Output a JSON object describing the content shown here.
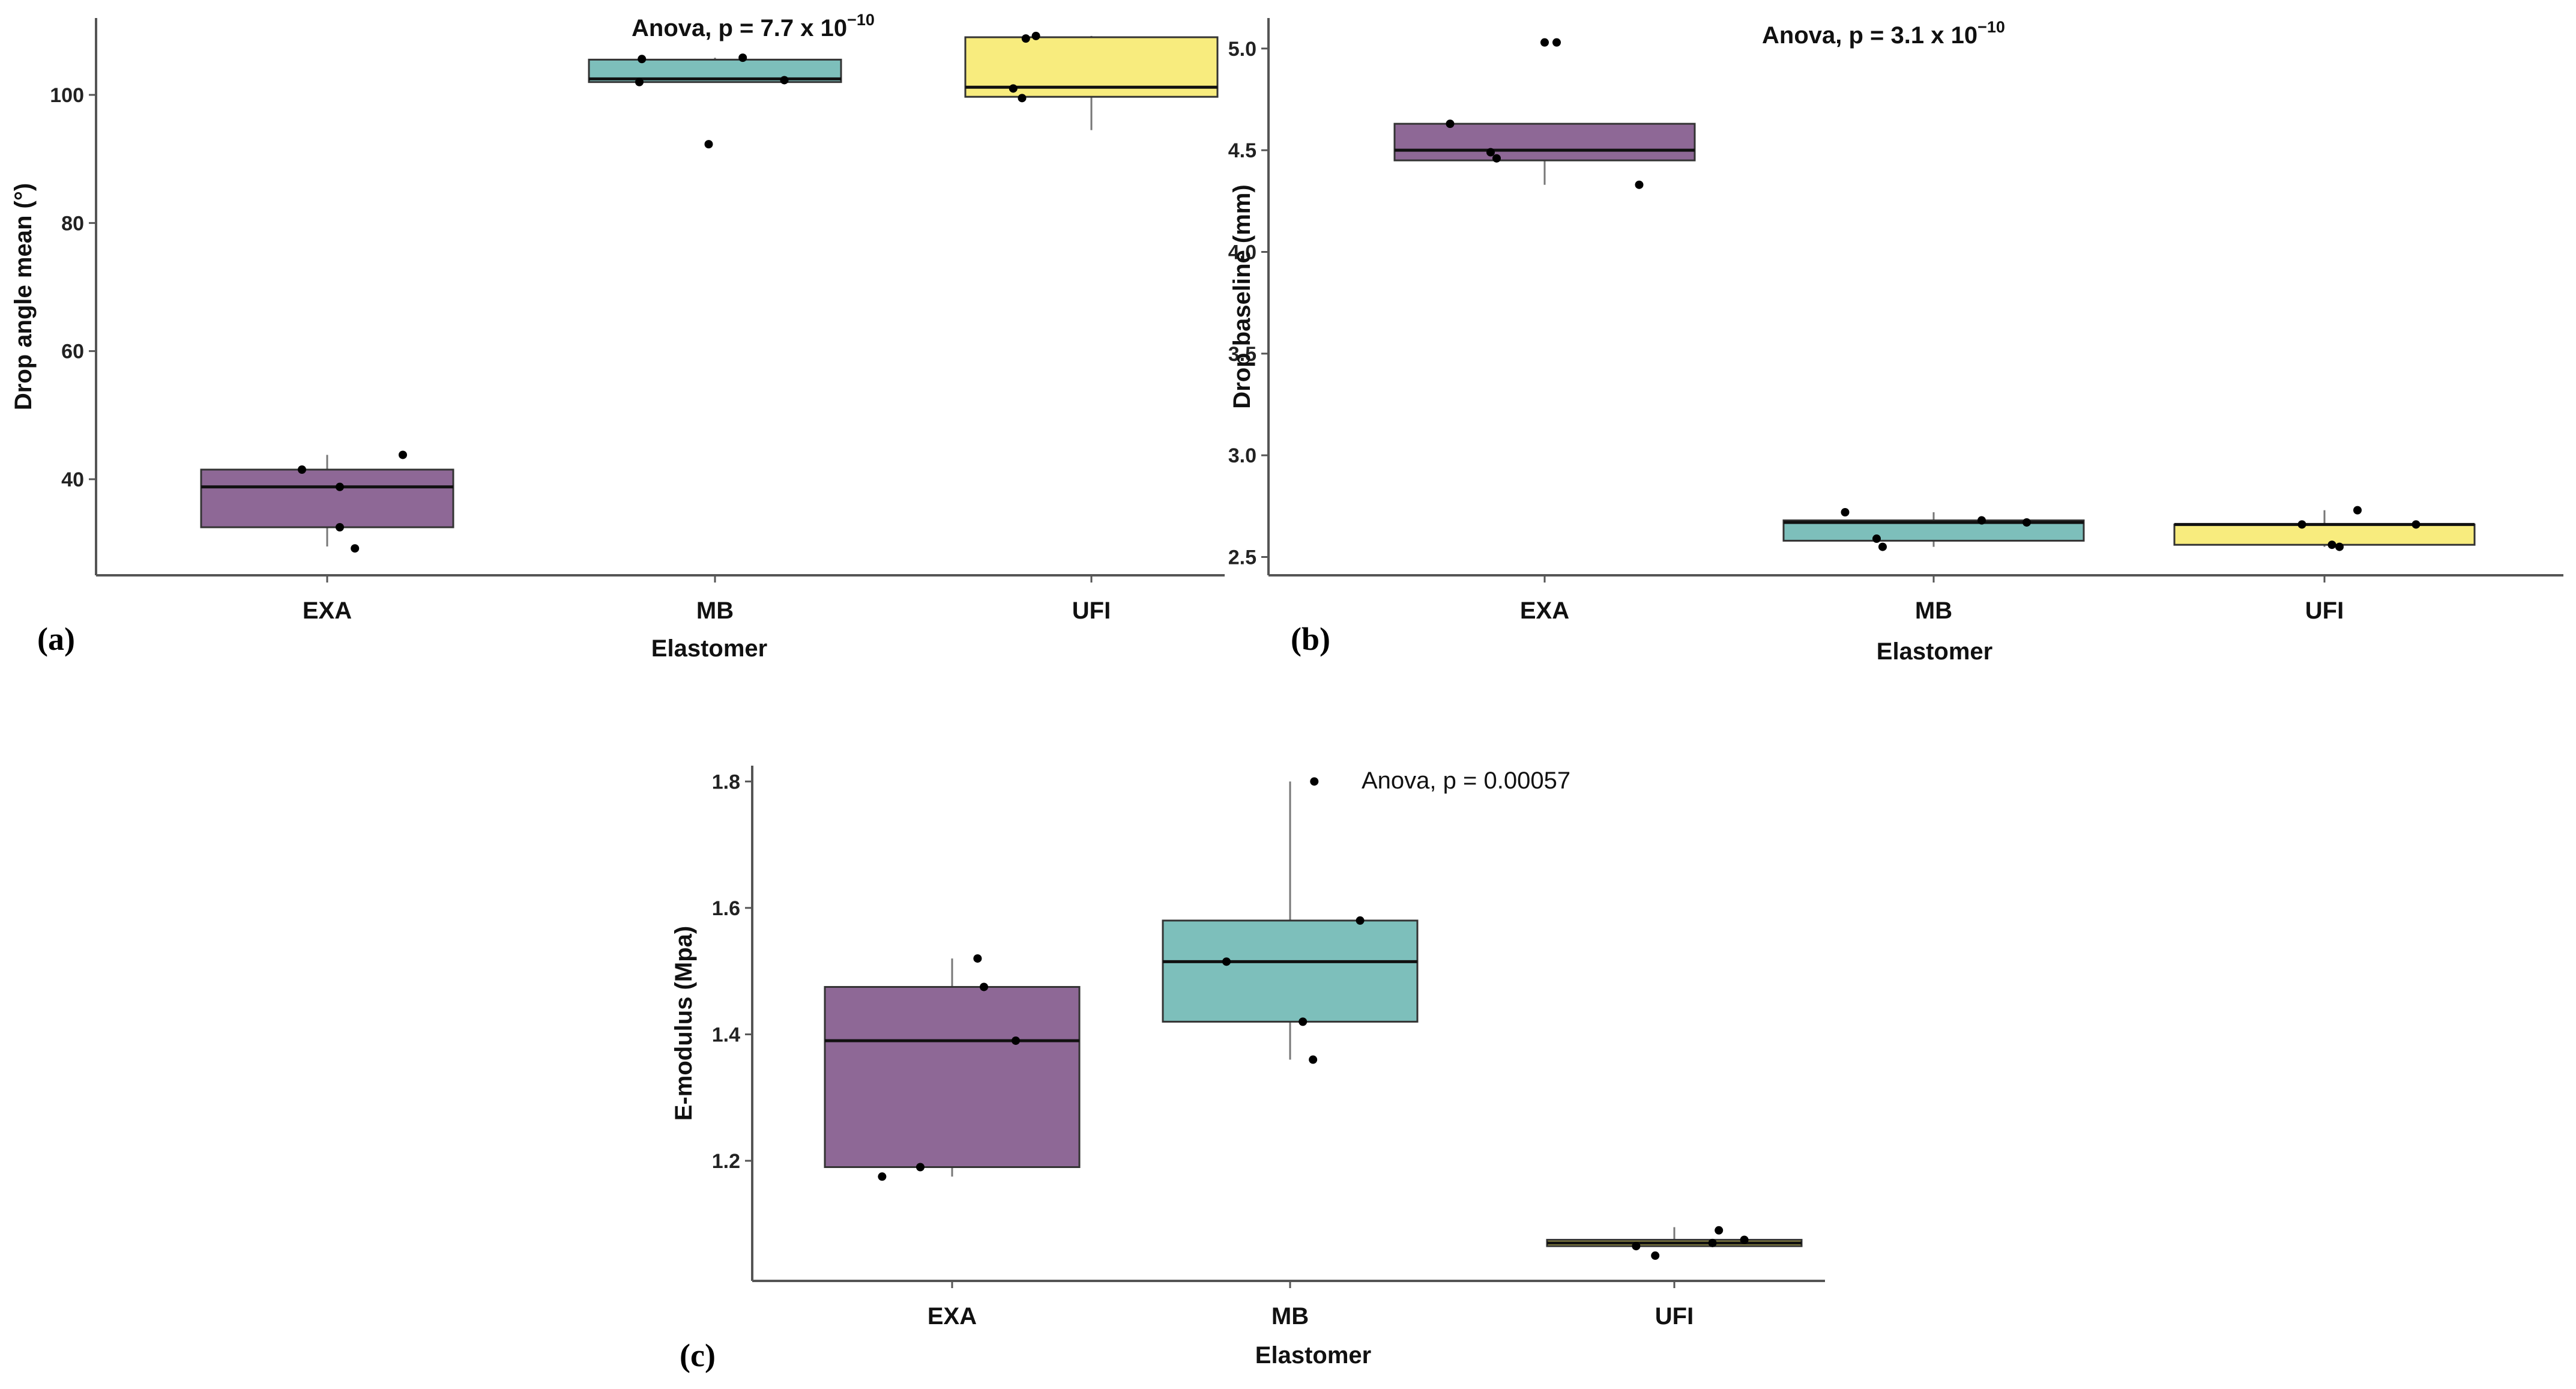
{
  "figure": {
    "panel_labels": [
      "(a)",
      "(b)",
      "(c)"
    ]
  },
  "colors": {
    "EXA": "#8e6896",
    "MB": "#7dbfbb",
    "UFI": "#f8ec7e",
    "UFI_c": "#b5ad52"
  },
  "chart_data": [
    {
      "type": "box",
      "panel": "(a)",
      "title": "",
      "annotation": {
        "prefix": "Anova, p = 7.7 x 10",
        "exponent": "−10"
      },
      "xlabel": "Elastomer",
      "ylabel": "Drop angle mean (°)",
      "categories": [
        "EXA",
        "MB",
        "UFI"
      ],
      "ylim": [
        25,
        112
      ],
      "yticks": [
        40,
        60,
        80,
        100
      ],
      "ytick_labels": [
        "40",
        "60",
        "80",
        "100"
      ],
      "boxes": [
        {
          "category": "EXA",
          "whisker_low": 29.5,
          "q1": 32.5,
          "median": 38.8,
          "q3": 41.5,
          "whisker_high": 43.8
        },
        {
          "category": "MB",
          "whisker_low": 102.0,
          "q1": 102.0,
          "median": 102.5,
          "q3": 105.5,
          "whisker_high": 105.8
        },
        {
          "category": "UFI",
          "whisker_low": 94.5,
          "q1": 99.7,
          "median": 101.2,
          "q3": 109.0,
          "whisker_high": 109.2
        }
      ],
      "points": [
        {
          "category": "EXA",
          "offset": -0.2,
          "value": 41.5
        },
        {
          "category": "EXA",
          "offset": 0.1,
          "value": 38.8
        },
        {
          "category": "EXA",
          "offset": 0.1,
          "value": 32.5
        },
        {
          "category": "EXA",
          "offset": 0.22,
          "value": 29.2
        },
        {
          "category": "EXA",
          "offset": 0.6,
          "value": 43.8
        },
        {
          "category": "MB",
          "offset": -0.6,
          "value": 102.0
        },
        {
          "category": "MB",
          "offset": -0.58,
          "value": 105.6
        },
        {
          "category": "MB",
          "offset": -0.05,
          "value": 92.3
        },
        {
          "category": "MB",
          "offset": 0.22,
          "value": 105.8
        },
        {
          "category": "MB",
          "offset": 0.55,
          "value": 102.3
        },
        {
          "category": "UFI",
          "offset": -0.62,
          "value": 101.0
        },
        {
          "category": "UFI",
          "offset": -0.55,
          "value": 99.5
        },
        {
          "category": "UFI",
          "offset": -0.52,
          "value": 108.8
        },
        {
          "category": "UFI",
          "offset": -0.44,
          "value": 109.2
        }
      ]
    },
    {
      "type": "box",
      "panel": "(b)",
      "title": "",
      "annotation": {
        "prefix": "Anova, p = 3.1 x 10",
        "exponent": "−10"
      },
      "xlabel": "Elastomer",
      "ylabel": "Drop baseline (mm)",
      "categories": [
        "EXA",
        "MB",
        "UFI"
      ],
      "ylim": [
        2.41,
        5.15
      ],
      "yticks": [
        2.5,
        3.0,
        3.5,
        4.0,
        4.5,
        5.0
      ],
      "ytick_labels": [
        "2.5",
        "3.0",
        "3.5",
        "4.0",
        "4.5",
        "5.0"
      ],
      "boxes": [
        {
          "category": "EXA",
          "whisker_low": 4.33,
          "q1": 4.45,
          "median": 4.5,
          "q3": 4.63,
          "whisker_high": 4.63
        },
        {
          "category": "MB",
          "whisker_low": 2.55,
          "q1": 2.58,
          "median": 2.67,
          "q3": 2.68,
          "whisker_high": 2.72
        },
        {
          "category": "UFI",
          "whisker_low": 2.55,
          "q1": 2.56,
          "median": 2.66,
          "q3": 2.66,
          "whisker_high": 2.73
        }
      ],
      "points": [
        {
          "category": "EXA",
          "offset": -0.63,
          "value": 4.63
        },
        {
          "category": "EXA",
          "offset": -0.36,
          "value": 4.49
        },
        {
          "category": "EXA",
          "offset": -0.32,
          "value": 4.46
        },
        {
          "category": "EXA",
          "offset": 0.0,
          "value": 5.03
        },
        {
          "category": "EXA",
          "offset": 0.08,
          "value": 5.03
        },
        {
          "category": "EXA",
          "offset": 0.63,
          "value": 4.33
        },
        {
          "category": "MB",
          "offset": -0.59,
          "value": 2.72
        },
        {
          "category": "MB",
          "offset": -0.38,
          "value": 2.59
        },
        {
          "category": "MB",
          "offset": -0.34,
          "value": 2.55
        },
        {
          "category": "MB",
          "offset": 0.32,
          "value": 2.68
        },
        {
          "category": "MB",
          "offset": 0.62,
          "value": 2.67
        },
        {
          "category": "UFI",
          "offset": -0.15,
          "value": 2.66
        },
        {
          "category": "UFI",
          "offset": 0.05,
          "value": 2.56
        },
        {
          "category": "UFI",
          "offset": 0.1,
          "value": 2.55
        },
        {
          "category": "UFI",
          "offset": 0.22,
          "value": 2.73
        },
        {
          "category": "UFI",
          "offset": 0.61,
          "value": 2.66
        }
      ]
    },
    {
      "type": "box",
      "panel": "(c)",
      "title": "",
      "annotation": {
        "prefix": "Anova, p = 0.00057",
        "exponent": ""
      },
      "xlabel": "Elastomer",
      "ylabel": "E-modulus (Mpa)",
      "categories": [
        "EXA",
        "MB",
        "UFI"
      ],
      "ylim": [
        1.01,
        1.825
      ],
      "yticks": [
        1.2,
        1.4,
        1.6,
        1.8
      ],
      "ytick_labels": [
        "1.2",
        "1.4",
        "1.6",
        "1.8"
      ],
      "boxes": [
        {
          "category": "EXA",
          "whisker_low": 1.175,
          "q1": 1.19,
          "median": 1.39,
          "q3": 1.475,
          "whisker_high": 1.52
        },
        {
          "category": "MB",
          "whisker_low": 1.36,
          "q1": 1.42,
          "median": 1.515,
          "q3": 1.58,
          "whisker_high": 1.8
        },
        {
          "category": "UFI",
          "whisker_low": 1.065,
          "q1": 1.065,
          "median": 1.07,
          "q3": 1.075,
          "whisker_high": 1.095
        }
      ],
      "points": [
        {
          "category": "EXA",
          "offset": -0.55,
          "value": 1.175
        },
        {
          "category": "EXA",
          "offset": -0.25,
          "value": 1.19
        },
        {
          "category": "EXA",
          "offset": 0.2,
          "value": 1.52
        },
        {
          "category": "EXA",
          "offset": 0.25,
          "value": 1.475
        },
        {
          "category": "EXA",
          "offset": 0.5,
          "value": 1.39
        },
        {
          "category": "MB",
          "offset": -0.5,
          "value": 1.515
        },
        {
          "category": "MB",
          "offset": 0.1,
          "value": 1.42
        },
        {
          "category": "MB",
          "offset": 0.18,
          "value": 1.36
        },
        {
          "category": "MB",
          "offset": 0.19,
          "value": 1.8
        },
        {
          "category": "MB",
          "offset": 0.55,
          "value": 1.58
        },
        {
          "category": "UFI",
          "offset": -0.3,
          "value": 1.065
        },
        {
          "category": "UFI",
          "offset": -0.15,
          "value": 1.05
        },
        {
          "category": "UFI",
          "offset": 0.3,
          "value": 1.07
        },
        {
          "category": "UFI",
          "offset": 0.35,
          "value": 1.09
        },
        {
          "category": "UFI",
          "offset": 0.55,
          "value": 1.075
        }
      ]
    }
  ]
}
